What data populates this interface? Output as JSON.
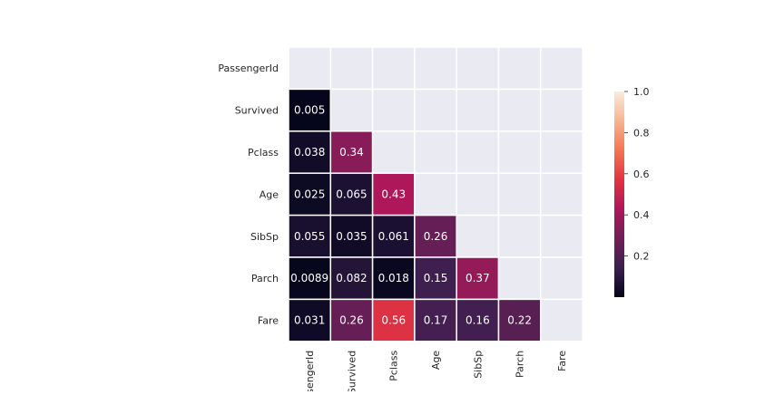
{
  "chart_data": {
    "type": "heatmap",
    "title": "",
    "variables": [
      "PassengerId",
      "Survived",
      "Pclass",
      "Age",
      "SibSp",
      "Parch",
      "Fare"
    ],
    "mask": "upper-triangle-including-diagonal",
    "annotations": true,
    "cells": [
      {
        "row": "Survived",
        "col": "PassengerId",
        "value": 0.005,
        "label": "0.005"
      },
      {
        "row": "Pclass",
        "col": "PassengerId",
        "value": 0.038,
        "label": "0.038"
      },
      {
        "row": "Pclass",
        "col": "Survived",
        "value": 0.34,
        "label": "0.34"
      },
      {
        "row": "Age",
        "col": "PassengerId",
        "value": 0.025,
        "label": "0.025"
      },
      {
        "row": "Age",
        "col": "Survived",
        "value": 0.065,
        "label": "0.065"
      },
      {
        "row": "Age",
        "col": "Pclass",
        "value": 0.43,
        "label": "0.43"
      },
      {
        "row": "SibSp",
        "col": "PassengerId",
        "value": 0.055,
        "label": "0.055"
      },
      {
        "row": "SibSp",
        "col": "Survived",
        "value": 0.035,
        "label": "0.035"
      },
      {
        "row": "SibSp",
        "col": "Pclass",
        "value": 0.061,
        "label": "0.061"
      },
      {
        "row": "SibSp",
        "col": "Age",
        "value": 0.26,
        "label": "0.26"
      },
      {
        "row": "Parch",
        "col": "PassengerId",
        "value": 0.0089,
        "label": "0.0089"
      },
      {
        "row": "Parch",
        "col": "Survived",
        "value": 0.082,
        "label": "0.082"
      },
      {
        "row": "Parch",
        "col": "Pclass",
        "value": 0.018,
        "label": "0.018"
      },
      {
        "row": "Parch",
        "col": "Age",
        "value": 0.15,
        "label": "0.15"
      },
      {
        "row": "Parch",
        "col": "SibSp",
        "value": 0.37,
        "label": "0.37"
      },
      {
        "row": "Fare",
        "col": "PassengerId",
        "value": 0.031,
        "label": "0.031"
      },
      {
        "row": "Fare",
        "col": "Survived",
        "value": 0.26,
        "label": "0.26"
      },
      {
        "row": "Fare",
        "col": "Pclass",
        "value": 0.56,
        "label": "0.56"
      },
      {
        "row": "Fare",
        "col": "Age",
        "value": 0.17,
        "label": "0.17"
      },
      {
        "row": "Fare",
        "col": "SibSp",
        "value": 0.16,
        "label": "0.16"
      },
      {
        "row": "Fare",
        "col": "Parch",
        "value": 0.22,
        "label": "0.22"
      }
    ],
    "colorbar": {
      "vmin": 0,
      "vmax": 1.0,
      "ticks": [
        0.2,
        0.4,
        0.6,
        0.8,
        1.0
      ],
      "tick_labels": [
        "0.2",
        "0.4",
        "0.6",
        "0.8",
        "1.0"
      ],
      "colormap": "rocket",
      "colormap_stops": [
        "#03051a",
        "#3b1f4f",
        "#701f57",
        "#ad1759",
        "#e13342",
        "#f37651",
        "#f6b48f",
        "#faebdd"
      ]
    },
    "masked_color": "#eaeaf2",
    "annotation_text_color": "#ffffff",
    "tick_label_color": "#262626"
  }
}
